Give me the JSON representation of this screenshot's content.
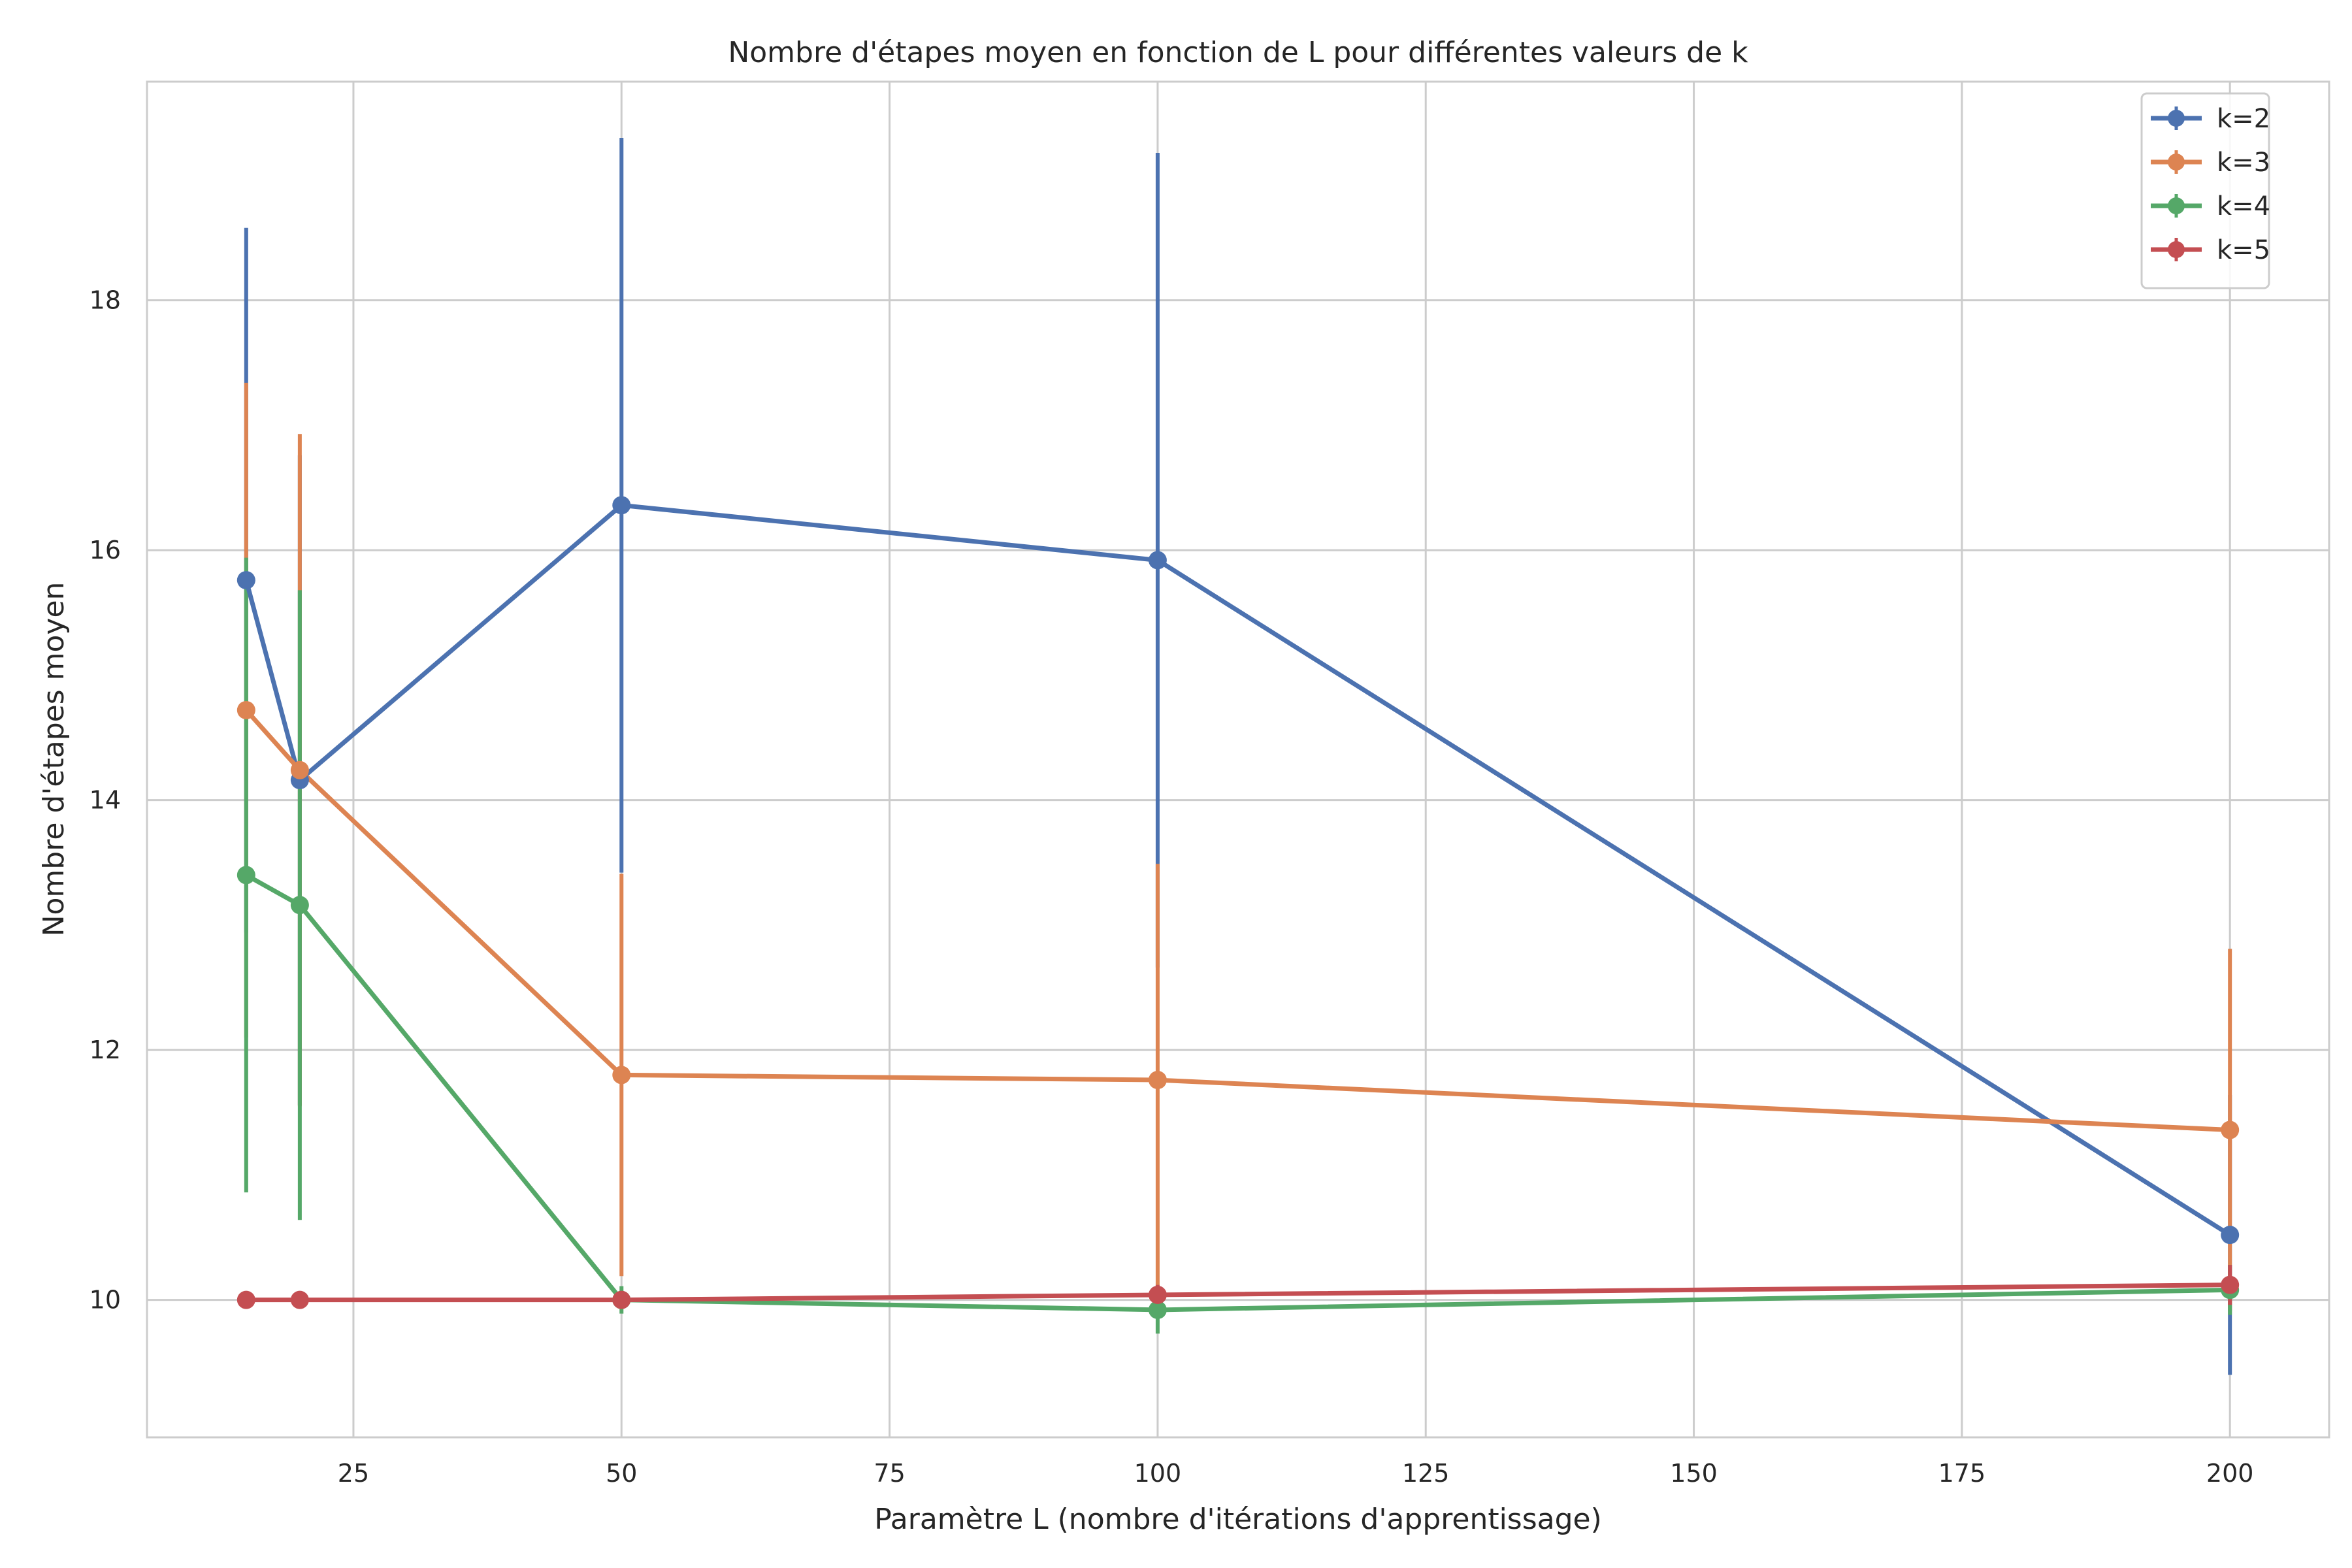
{
  "chart_data": {
    "type": "line",
    "title": "Nombre d'étapes moyen en fonction de L pour différentes valeurs de k",
    "xlabel": "Paramètre L (nombre d'itérations d'apprentissage)",
    "ylabel": "Nombre d'étapes moyen",
    "xlim": [
      5.75,
      209.25
    ],
    "ylim": [
      8.9,
      19.75
    ],
    "xticks": [
      25,
      50,
      75,
      100,
      125,
      150,
      175,
      200
    ],
    "yticks": [
      10,
      12,
      14,
      16,
      18
    ],
    "grid": true,
    "legend_position": "top-right",
    "x": [
      15,
      20,
      50,
      100,
      200
    ],
    "series": [
      {
        "name": "k=2",
        "color": "#4c72b0",
        "values": [
          15.76,
          14.16,
          16.36,
          15.92,
          10.52
        ],
        "errors": [
          2.82,
          2.6,
          2.94,
          3.26,
          1.12
        ]
      },
      {
        "name": "k=3",
        "color": "#dd8452",
        "values": [
          14.72,
          14.24,
          11.8,
          11.76,
          11.36
        ],
        "errors": [
          2.62,
          2.69,
          1.61,
          1.73,
          1.45
        ]
      },
      {
        "name": "k=4",
        "color": "#55a868",
        "values": [
          13.4,
          13.16,
          10.0,
          9.92,
          10.08
        ],
        "errors": [
          2.54,
          2.52,
          0.11,
          0.19,
          0.2
        ]
      },
      {
        "name": "k=5",
        "color": "#c44e52",
        "values": [
          10.0,
          10.0,
          10.0,
          10.04,
          10.12
        ],
        "errors": [
          0.0,
          0.0,
          0.0,
          0.08,
          0.16
        ]
      }
    ]
  }
}
